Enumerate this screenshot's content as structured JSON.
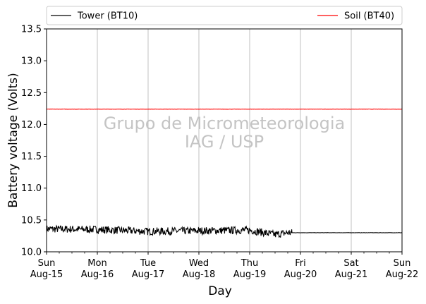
{
  "chart_data": {
    "type": "line",
    "xlabel": "Day",
    "ylabel": "Battery voltage (Volts)",
    "ylim": [
      10.0,
      13.5
    ],
    "xlim": [
      "2021-08-15",
      "2021-08-22"
    ],
    "yticks": [
      "10.0",
      "10.5",
      "11.0",
      "11.5",
      "12.0",
      "12.5",
      "13.0",
      "13.5"
    ],
    "xticks": [
      {
        "line1": "Sun",
        "line2": "Aug-15"
      },
      {
        "line1": "Mon",
        "line2": "Aug-16"
      },
      {
        "line1": "Tue",
        "line2": "Aug-17"
      },
      {
        "line1": "Wed",
        "line2": "Aug-18"
      },
      {
        "line1": "Thu",
        "line2": "Aug-19"
      },
      {
        "line1": "Fri",
        "line2": "Aug-20"
      },
      {
        "line1": "Sat",
        "line2": "Aug-21"
      },
      {
        "line1": "Sun",
        "line2": "Aug-22"
      }
    ],
    "grid": "vertical major",
    "legend_placement": "top, above plot",
    "series": [
      {
        "name": "Tower (BT10)",
        "color": "#000000",
        "x": [
          "2021-08-15",
          "2021-08-16",
          "2021-08-17",
          "2021-08-18",
          "2021-08-19",
          "2021-08-19 12:00",
          "2021-08-19 18:00",
          "2021-08-19 20:00",
          "2021-08-22"
        ],
        "y": [
          10.36,
          10.35,
          10.32,
          10.33,
          10.34,
          10.27,
          10.3,
          10.3,
          10.3
        ],
        "noisy_until": "2021-08-19 20:00"
      },
      {
        "name": "Soil (BT40)",
        "color": "#ff0000",
        "x": [
          "2021-08-15",
          "2021-08-22"
        ],
        "y": [
          12.24,
          12.24
        ]
      }
    ],
    "annotations": [
      "Grupo de Micrometeorologia",
      "IAG / USP"
    ]
  }
}
